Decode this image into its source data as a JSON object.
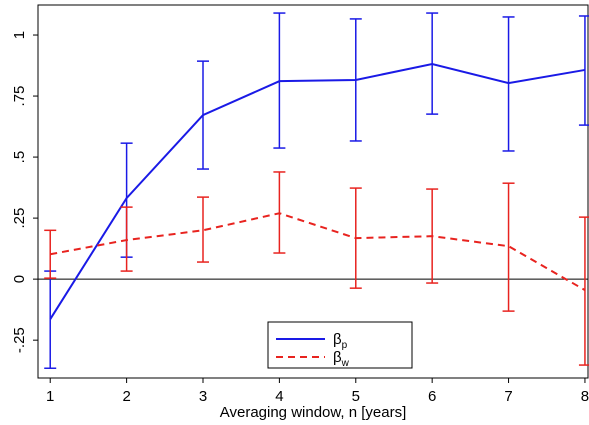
{
  "chart_data": {
    "type": "line",
    "x_label": "Averaging window, n [years]",
    "x": [
      1,
      2,
      3,
      4,
      5,
      6,
      7,
      8
    ],
    "xlim": [
      0.84,
      8.04
    ],
    "xticks": [
      1,
      2,
      3,
      4,
      5,
      6,
      7,
      8
    ],
    "ylim": [
      -0.405,
      1.123
    ],
    "yticks": [
      {
        "value": -0.25,
        "label": "-.25"
      },
      0,
      {
        "value": 0.25,
        "label": ".25"
      },
      {
        "value": 0.5,
        "label": ".5"
      },
      {
        "value": 0.75,
        "label": ".75"
      },
      1
    ],
    "hline": 0,
    "grid": false,
    "series": [
      {
        "name": "βp",
        "color": "#1a1ae6",
        "dash": false,
        "values": [
          -0.164,
          0.332,
          0.672,
          0.811,
          0.816,
          0.881,
          0.803,
          0.857
        ],
        "lower": [
          -0.365,
          0.09,
          0.451,
          0.537,
          0.566,
          0.676,
          0.525,
          0.631
        ],
        "upper": [
          0.033,
          0.557,
          0.893,
          1.09,
          1.066,
          1.09,
          1.074,
          1.078
        ]
      },
      {
        "name": "βw",
        "color": "#e8231f",
        "dash": true,
        "values": [
          0.102,
          0.16,
          0.2,
          0.27,
          0.168,
          0.176,
          0.135,
          -0.045
        ],
        "lower": [
          0.004,
          0.033,
          0.07,
          0.107,
          -0.037,
          -0.016,
          -0.131,
          -0.352
        ],
        "upper": [
          0.2,
          0.295,
          0.336,
          0.439,
          0.373,
          0.369,
          0.393,
          0.254
        ]
      }
    ]
  }
}
